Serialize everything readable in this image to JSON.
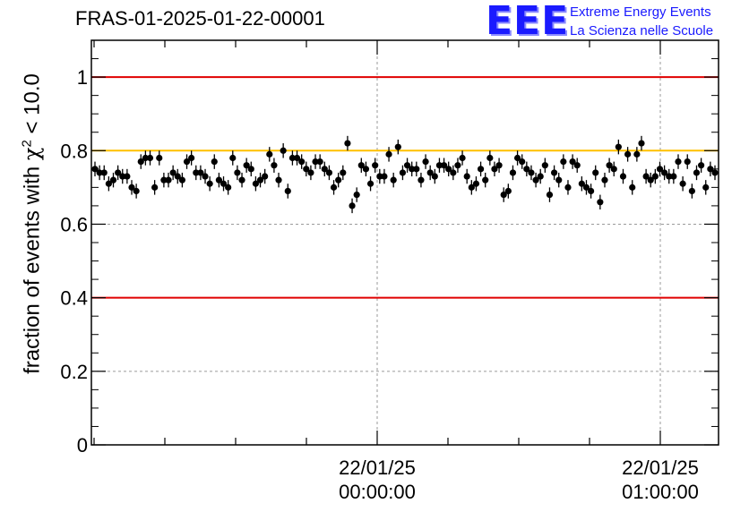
{
  "header": {
    "run_title": "FRAS-01-2025-01-22-00001"
  },
  "logo": {
    "mark": "EEE",
    "line1": "Extreme Energy Events",
    "line2": "La Scienza nelle Scuole",
    "color": "#1a1aff"
  },
  "axis": {
    "ylabel_prefix": "fraction of events with ",
    "ylabel_symbol": "χ",
    "ylabel_power": "2",
    "ylabel_suffix": " < 10.0"
  },
  "chart_data": {
    "type": "scatter",
    "ylim": [
      0,
      1.1
    ],
    "y_ticks": [
      0,
      0.2,
      0.4,
      0.6,
      0.8,
      1
    ],
    "y_tick_labels": [
      "0",
      "0.2",
      "0.4",
      "0.6",
      "0.8",
      "1"
    ],
    "x_ticks": [
      {
        "time": "22/01/25 00:00:00",
        "date_label": "22/01/25",
        "time_label": "00:00:00"
      },
      {
        "time": "22/01/25 01:00:00",
        "date_label": "22/01/25",
        "time_label": "01:00:00"
      }
    ],
    "grid": true,
    "reference_lines": [
      {
        "y": 1.0,
        "color": "#e00000"
      },
      {
        "y": 0.8,
        "color": "#ffc000"
      },
      {
        "y": 0.4,
        "color": "#e00000"
      }
    ],
    "series": [
      {
        "error": 0.02,
        "values": [
          0.75,
          0.74,
          0.74,
          0.71,
          0.72,
          0.74,
          0.73,
          0.73,
          0.7,
          0.69,
          0.77,
          0.78,
          0.78,
          0.7,
          0.78,
          0.72,
          0.72,
          0.74,
          0.73,
          0.72,
          0.77,
          0.78,
          0.74,
          0.74,
          0.73,
          0.71,
          0.77,
          0.72,
          0.71,
          0.7,
          0.78,
          0.74,
          0.72,
          0.76,
          0.75,
          0.71,
          0.72,
          0.73,
          0.79,
          0.76,
          0.72,
          0.8,
          0.69,
          0.78,
          0.78,
          0.77,
          0.75,
          0.74,
          0.77,
          0.77,
          0.75,
          0.74,
          0.7,
          0.72,
          0.74,
          0.82,
          0.65,
          0.68,
          0.76,
          0.75,
          0.71,
          0.76,
          0.73,
          0.73,
          0.79,
          0.72,
          0.81,
          0.74,
          0.76,
          0.75,
          0.75,
          0.72,
          0.77,
          0.74,
          0.73,
          0.76,
          0.76,
          0.75,
          0.74,
          0.76,
          0.78,
          0.73,
          0.7,
          0.71,
          0.75,
          0.72,
          0.78,
          0.75,
          0.76,
          0.68,
          0.69,
          0.74,
          0.78,
          0.77,
          0.75,
          0.74,
          0.72,
          0.73,
          0.76,
          0.68,
          0.74,
          0.72,
          0.77,
          0.7,
          0.77,
          0.76,
          0.71,
          0.7,
          0.69,
          0.74,
          0.66,
          0.72,
          0.76,
          0.75,
          0.81,
          0.73,
          0.79,
          0.7,
          0.79,
          0.82,
          0.73,
          0.72,
          0.73,
          0.75,
          0.74,
          0.73,
          0.73,
          0.77,
          0.71,
          0.77,
          0.69,
          0.74,
          0.76,
          0.7,
          0.75,
          0.74
        ]
      }
    ]
  }
}
